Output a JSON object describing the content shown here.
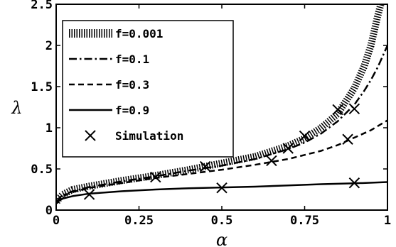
{
  "chart_data": {
    "type": "line",
    "xlabel": "α",
    "ylabel": "λ",
    "xlim": [
      0,
      1
    ],
    "ylim": [
      0,
      2.5
    ],
    "xticks": [
      0,
      0.25,
      0.5,
      0.75,
      1
    ],
    "xtick_labels": [
      "0",
      "0.25",
      "0.5",
      "0.75",
      "1"
    ],
    "yticks": [
      0,
      0.5,
      1,
      1.5,
      2,
      2.5
    ],
    "ytick_labels": [
      "0",
      "0.5",
      "1",
      "1.5",
      "2",
      "2.5"
    ],
    "grid": false,
    "legend_position": "top-left",
    "series": [
      {
        "name": "f=0.001",
        "style": "hatched",
        "color": "#000000",
        "x": [
          0.002,
          0.01,
          0.02,
          0.05,
          0.1,
          0.2,
          0.3,
          0.4,
          0.5,
          0.6,
          0.7,
          0.75,
          0.8,
          0.85,
          0.9,
          0.93,
          0.95,
          0.97,
          0.98
        ],
        "y": [
          0.1,
          0.15,
          0.19,
          0.25,
          0.29,
          0.36,
          0.42,
          0.49,
          0.57,
          0.65,
          0.78,
          0.87,
          1.0,
          1.17,
          1.48,
          1.75,
          2.0,
          2.35,
          2.5
        ]
      },
      {
        "name": "f=0.1",
        "style": "dash-dot",
        "color": "#000000",
        "x": [
          0.002,
          0.01,
          0.02,
          0.05,
          0.1,
          0.2,
          0.3,
          0.4,
          0.5,
          0.6,
          0.7,
          0.75,
          0.8,
          0.85,
          0.9,
          0.93,
          0.95,
          0.97,
          1.0
        ],
        "y": [
          0.1,
          0.15,
          0.18,
          0.23,
          0.28,
          0.35,
          0.41,
          0.48,
          0.54,
          0.62,
          0.74,
          0.82,
          0.93,
          1.08,
          1.28,
          1.45,
          1.58,
          1.73,
          2.0
        ]
      },
      {
        "name": "f=0.3",
        "style": "dashed",
        "color": "#000000",
        "x": [
          0.002,
          0.01,
          0.02,
          0.05,
          0.1,
          0.2,
          0.3,
          0.4,
          0.5,
          0.6,
          0.7,
          0.8,
          0.85,
          0.9,
          0.95,
          1.0
        ],
        "y": [
          0.1,
          0.14,
          0.17,
          0.22,
          0.27,
          0.33,
          0.39,
          0.44,
          0.49,
          0.55,
          0.62,
          0.72,
          0.79,
          0.88,
          0.97,
          1.09
        ]
      },
      {
        "name": "f=0.9",
        "style": "solid",
        "color": "#000000",
        "x": [
          0.002,
          0.01,
          0.02,
          0.05,
          0.1,
          0.2,
          0.3,
          0.4,
          0.5,
          0.6,
          0.7,
          0.8,
          0.9,
          1.0
        ],
        "y": [
          0.08,
          0.12,
          0.14,
          0.17,
          0.2,
          0.23,
          0.25,
          0.265,
          0.275,
          0.285,
          0.3,
          0.315,
          0.325,
          0.34
        ]
      },
      {
        "name": "Simulation",
        "style": "markers-x",
        "color": "#000000",
        "x": [
          0.1,
          0.3,
          0.45,
          0.5,
          0.65,
          0.7,
          0.75,
          0.85,
          0.88,
          0.9,
          0.9
        ],
        "y": [
          0.19,
          0.4,
          0.53,
          0.27,
          0.6,
          0.75,
          0.9,
          1.22,
          0.86,
          1.23,
          0.33
        ]
      }
    ]
  }
}
